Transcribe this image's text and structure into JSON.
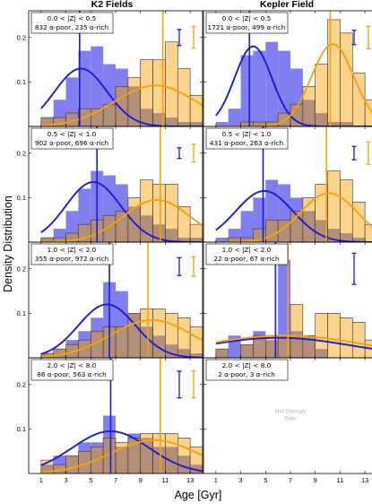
{
  "figure": {
    "col_titles": [
      "K2 Fields",
      "Kepler Field"
    ],
    "xlabel": "Age [Gyr]",
    "ylabel": "Density Distribution",
    "no_data_lines": [
      "Not Enough",
      "Data"
    ]
  },
  "colors": {
    "alpha_poor_fill": "#7f7ff0",
    "alpha_rich_fill": "#fcd38a",
    "overlap_fill": "#b48f78",
    "alpha_poor_line": "#1a1ad9",
    "alpha_rich_line": "#f5a10f",
    "bar_edge": "#333333"
  },
  "chart_data": [
    {
      "type": "bar",
      "panel": "K2 Fields row 1",
      "label_lines": [
        "0.0 < |Z| < 0.5",
        "832 α-poor, 235 α-rich"
      ],
      "xlim": [
        0,
        14
      ],
      "ylim": [
        0,
        0.26
      ],
      "yticks": [
        0.1,
        0.2
      ],
      "xticks": [
        1,
        3,
        5,
        7,
        9,
        11,
        13
      ],
      "bin_edges": [
        1,
        2,
        3,
        4,
        5,
        6,
        7,
        8,
        9,
        10,
        11,
        12,
        13,
        14
      ],
      "series": [
        {
          "values": [
            0.02,
            0.06,
            0.11,
            0.17,
            0.18,
            0.14,
            0.13,
            0.09,
            0.04,
            0.03,
            0.02,
            0.01,
            0.01
          ]
        },
        {
          "values": [
            0.02,
            0.02,
            0.03,
            0.04,
            0.04,
            0.05,
            0.09,
            0.11,
            0.15,
            0.15,
            0.19,
            0.13,
            0.07
          ]
        }
      ],
      "fit_curves": [
        {
          "mu": 4.2,
          "sigma": 2.1,
          "amp": 0.13
        },
        {
          "mu": 10.2,
          "sigma": 3.3,
          "amp": 0.092
        }
      ],
      "median_lines": [
        4.1,
        10.8
      ],
      "error_bars": [
        {
          "center": 0.2,
          "half": 0.018
        },
        {
          "center": 0.2,
          "half": 0.024
        }
      ]
    },
    {
      "type": "bar",
      "panel": "Kepler Field row 1",
      "label_lines": [
        "0.0 < |Z| < 0.5",
        "1721 α-poor, 499 α-rich"
      ],
      "xlim": [
        0,
        14
      ],
      "ylim": [
        0,
        0.26
      ],
      "yticks": [
        0.1,
        0.2
      ],
      "xticks": [
        1,
        3,
        5,
        7,
        9,
        11,
        13
      ],
      "bin_edges": [
        1,
        2,
        3,
        4,
        5,
        6,
        7,
        8,
        9,
        10,
        11,
        12,
        13,
        14
      ],
      "series": [
        {
          "values": [
            0.01,
            0.04,
            0.16,
            0.17,
            0.19,
            0.17,
            0.13,
            0.06,
            0.03,
            0.01,
            0.01,
            0.0,
            0.0
          ]
        },
        {
          "values": [
            0.0,
            0.0,
            0.01,
            0.01,
            0.01,
            0.03,
            0.05,
            0.09,
            0.14,
            0.24,
            0.21,
            0.12,
            0.06
          ]
        }
      ],
      "fit_curves": [
        {
          "mu": 4.0,
          "sigma": 1.5,
          "amp": 0.18
        },
        {
          "mu": 10.4,
          "sigma": 1.7,
          "amp": 0.185
        }
      ],
      "median_lines": [
        3.7,
        10.2
      ],
      "error_bars": [
        {
          "center": 0.2,
          "half": 0.016
        },
        {
          "center": 0.2,
          "half": 0.025
        }
      ]
    },
    {
      "type": "bar",
      "panel": "K2 Fields row 2",
      "label_lines": [
        "0.5 < |Z| < 1.0",
        "902 α-poor, 696 α-rich"
      ],
      "xlim": [
        0,
        14
      ],
      "ylim": [
        0,
        0.26
      ],
      "yticks": [
        0.1,
        0.2
      ],
      "xticks": [
        1,
        3,
        5,
        7,
        9,
        11,
        13
      ],
      "bin_edges": [
        1,
        2,
        3,
        4,
        5,
        6,
        7,
        8,
        9,
        10,
        11,
        12,
        13,
        14
      ],
      "series": [
        {
          "values": [
            0.01,
            0.03,
            0.07,
            0.12,
            0.16,
            0.15,
            0.13,
            0.08,
            0.06,
            0.04,
            0.03,
            0.01,
            0.01
          ]
        },
        {
          "values": [
            0.01,
            0.01,
            0.02,
            0.04,
            0.05,
            0.06,
            0.07,
            0.1,
            0.14,
            0.13,
            0.13,
            0.08,
            0.04
          ]
        }
      ],
      "fit_curves": [
        {
          "mu": 5.2,
          "sigma": 2.2,
          "amp": 0.135
        },
        {
          "mu": 10.3,
          "sigma": 2.7,
          "amp": 0.095
        }
      ],
      "median_lines": [
        5.5,
        10.6
      ],
      "error_bars": [
        {
          "center": 0.2,
          "half": 0.012
        },
        {
          "center": 0.2,
          "half": 0.02
        }
      ]
    },
    {
      "type": "bar",
      "panel": "Kepler Field row 2",
      "label_lines": [
        "0.5 < |Z| < 1.0",
        "431 α-poor, 263 α-rich"
      ],
      "xlim": [
        0,
        14
      ],
      "ylim": [
        0,
        0.26
      ],
      "yticks": [
        0.1,
        0.2
      ],
      "xticks": [
        1,
        3,
        5,
        7,
        9,
        11,
        13
      ],
      "bin_edges": [
        1,
        2,
        3,
        4,
        5,
        6,
        7,
        8,
        9,
        10,
        11,
        12,
        13,
        14
      ],
      "series": [
        {
          "values": [
            0.01,
            0.03,
            0.07,
            0.1,
            0.14,
            0.13,
            0.1,
            0.07,
            0.05,
            0.03,
            0.02,
            0.01,
            0.0
          ]
        },
        {
          "values": [
            0.0,
            0.01,
            0.01,
            0.03,
            0.05,
            0.05,
            0.07,
            0.1,
            0.13,
            0.16,
            0.14,
            0.09,
            0.04
          ]
        }
      ],
      "fit_curves": [
        {
          "mu": 4.9,
          "sigma": 2.3,
          "amp": 0.115
        },
        {
          "mu": 10.1,
          "sigma": 2.3,
          "amp": 0.11
        }
      ],
      "median_lines": [
        4.8,
        9.9
      ],
      "error_bars": [
        {
          "center": 0.2,
          "half": 0.015
        },
        {
          "center": 0.2,
          "half": 0.025
        }
      ]
    },
    {
      "type": "bar",
      "panel": "K2 Fields row 3",
      "label_lines": [
        "1.0 < |Z| < 2.0",
        "355 α-poor, 972 α-rich"
      ],
      "xlim": [
        0,
        14
      ],
      "ylim": [
        0,
        0.26
      ],
      "yticks": [
        0.1,
        0.2
      ],
      "xticks": [
        1,
        3,
        5,
        7,
        9,
        11,
        13
      ],
      "bin_edges": [
        1,
        2,
        3,
        4,
        5,
        6,
        7,
        8,
        9,
        10,
        11,
        12,
        13,
        14
      ],
      "series": [
        {
          "values": [
            0.01,
            0.02,
            0.04,
            0.06,
            0.09,
            0.17,
            0.15,
            0.1,
            0.07,
            0.05,
            0.03,
            0.02,
            0.01
          ]
        },
        {
          "values": [
            0.01,
            0.02,
            0.03,
            0.04,
            0.06,
            0.07,
            0.07,
            0.1,
            0.11,
            0.11,
            0.1,
            0.09,
            0.07
          ]
        }
      ],
      "fit_curves": [
        {
          "mu": 6.3,
          "sigma": 2.3,
          "amp": 0.12
        },
        {
          "mu": 9.9,
          "sigma": 3.3,
          "amp": 0.085
        }
      ],
      "median_lines": [
        6.5,
        9.6
      ],
      "error_bars": [
        {
          "center": 0.205,
          "half": 0.02
        },
        {
          "center": 0.205,
          "half": 0.022
        }
      ]
    },
    {
      "type": "bar",
      "panel": "Kepler Field row 3",
      "label_lines": [
        "1.0 < |Z| < 2.0",
        "22 α-poor, 67 α-rich"
      ],
      "xlim": [
        0,
        14
      ],
      "ylim": [
        0,
        0.26
      ],
      "yticks": [
        0.1,
        0.2
      ],
      "xticks": [
        1,
        3,
        5,
        7,
        9,
        11,
        13
      ],
      "bin_edges": [
        1,
        2,
        3,
        4,
        5,
        6,
        7,
        8,
        9,
        10,
        11,
        12,
        13,
        14
      ],
      "series": [
        {
          "values": [
            0.02,
            0.05,
            0.03,
            0.06,
            0.04,
            0.22,
            0.06,
            0.05,
            0.02,
            0.0,
            0.0,
            0.0,
            0.0
          ]
        },
        {
          "values": [
            0.02,
            0.0,
            0.03,
            0.05,
            0.05,
            0.05,
            0.12,
            0.05,
            0.1,
            0.1,
            0.09,
            0.08,
            0.04
          ]
        }
      ],
      "fit_curves": [
        {
          "mu": 6.0,
          "sigma": 6.0,
          "amp": 0.045
        },
        {
          "mu": 6.5,
          "sigma": 6.5,
          "amp": 0.05
        }
      ],
      "median_lines": [
        5.8,
        6.8
      ],
      "error_bars": [
        {
          "center": 0.2,
          "half": 0.035
        }
      ]
    },
    {
      "type": "bar",
      "panel": "K2 Fields row 4",
      "label_lines": [
        "2.0 < |Z| < 8.0",
        "86 α-poor, 563 α-rich"
      ],
      "xlim": [
        0,
        14
      ],
      "ylim": [
        0,
        0.26
      ],
      "yticks": [
        0.1,
        0.2
      ],
      "xticks": [
        1,
        3,
        5,
        7,
        9,
        11,
        13
      ],
      "bin_edges": [
        1,
        2,
        3,
        4,
        5,
        6,
        7,
        8,
        9,
        10,
        11,
        12,
        13,
        14
      ],
      "series": [
        {
          "values": [
            0.02,
            0.04,
            0.04,
            0.07,
            0.07,
            0.13,
            0.06,
            0.09,
            0.08,
            0.06,
            0.06,
            0.04,
            0.02
          ]
        },
        {
          "values": [
            0.03,
            0.02,
            0.04,
            0.05,
            0.06,
            0.08,
            0.07,
            0.08,
            0.09,
            0.09,
            0.09,
            0.08,
            0.06
          ]
        }
      ],
      "fit_curves": [
        {
          "mu": 6.6,
          "sigma": 3.1,
          "amp": 0.095
        },
        {
          "mu": 10.1,
          "sigma": 3.5,
          "amp": 0.075
        }
      ],
      "median_lines": [
        6.6,
        10.6
      ],
      "error_bars": [
        {
          "center": 0.2,
          "half": 0.03
        },
        {
          "center": 0.2,
          "half": 0.03
        }
      ]
    },
    {
      "type": "bar",
      "panel": "Kepler Field row 4",
      "label_lines": [
        "2.0 < |Z| < 8.0",
        "2 α-poor, 3 α-rich"
      ],
      "xlim": [
        0,
        14
      ],
      "ylim": [
        0,
        0.26
      ],
      "yticks": [
        0.1,
        0.2
      ],
      "xticks": [
        1,
        3,
        5,
        7,
        9,
        11,
        13
      ],
      "no_data": true
    }
  ]
}
